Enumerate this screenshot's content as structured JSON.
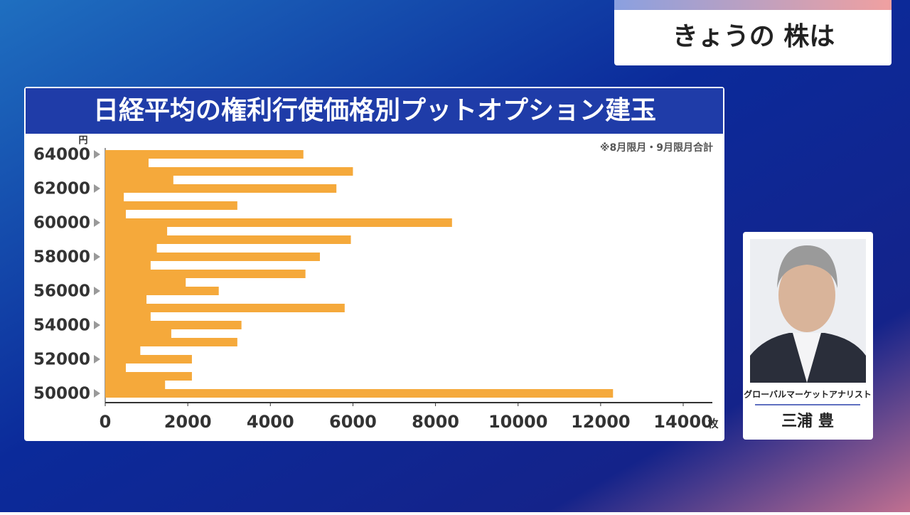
{
  "header": {
    "title": "きょうの 株は"
  },
  "chart_data": {
    "type": "hbar",
    "title": "日経平均の権利行使価格別プットオプション建玉",
    "note": "※8月限月・9月限月合計",
    "y_unit": "円",
    "x_unit": "枚",
    "categories": [
      "64000",
      null,
      null,
      null,
      "62000",
      null,
      null,
      null,
      "60000",
      null,
      null,
      null,
      "58000",
      null,
      null,
      null,
      "56000",
      null,
      null,
      null,
      "54000",
      null,
      null,
      null,
      "52000",
      null,
      null,
      null,
      "50000"
    ],
    "values": [
      4800,
      1050,
      6000,
      1650,
      5600,
      450,
      3200,
      500,
      8400,
      1500,
      5950,
      1250,
      5200,
      1100,
      4850,
      1950,
      2750,
      1000,
      5800,
      1100,
      3300,
      1600,
      3200,
      850,
      2100,
      500,
      2100,
      1450,
      12300
    ],
    "color": "#f5a93b",
    "xlim": [
      0,
      14000
    ],
    "xticks": [
      0,
      2000,
      4000,
      6000,
      8000,
      10000,
      12000,
      14000
    ]
  },
  "presenter": {
    "role": "グローバルマーケットアナリスト",
    "name": "三浦 豊"
  }
}
